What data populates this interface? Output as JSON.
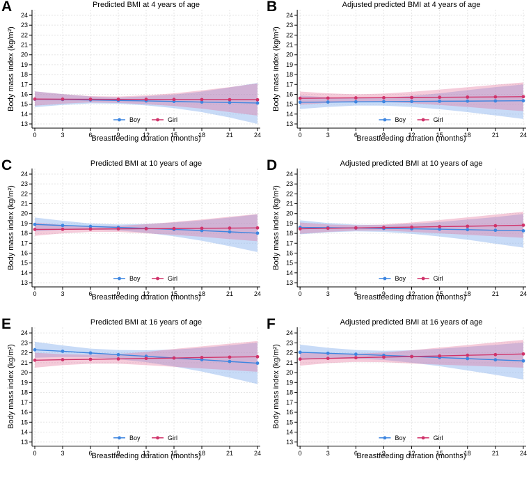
{
  "figure": {
    "background": "#ffffff",
    "legend_labels": [
      "Boy",
      "Girl"
    ],
    "boy_color": "#3e86e0",
    "girl_color": "#d0336a"
  },
  "chart_data": [
    {
      "type": "line",
      "panel_label": "A",
      "title": "Predicted BMI at 4 years of age",
      "xlabel": "Breastfeeding duration (months)",
      "ylabel": "Body mass index (kg/m²)",
      "x": [
        0,
        3,
        6,
        9,
        12,
        15,
        18,
        21,
        24
      ],
      "xticks": [
        0,
        3,
        6,
        9,
        12,
        15,
        18,
        21,
        24
      ],
      "yticks": [
        13,
        14,
        15,
        16,
        17,
        18,
        19,
        20,
        21,
        22,
        23,
        24
      ],
      "xlim": [
        0,
        24
      ],
      "ylim": [
        13,
        24
      ],
      "grid": true,
      "legend_position": "bottom-center-inside",
      "series": [
        {
          "name": "Boy",
          "color": "#3e86e0",
          "band_color": "rgba(125,170,235,0.42)",
          "values": [
            15.5,
            15.47,
            15.43,
            15.38,
            15.33,
            15.28,
            15.22,
            15.17,
            15.12
          ],
          "ci_lower": [
            14.7,
            14.92,
            15.08,
            15.05,
            14.88,
            14.6,
            14.2,
            13.65,
            13.0
          ],
          "ci_upper": [
            16.3,
            16.02,
            15.78,
            15.68,
            15.8,
            15.98,
            16.28,
            16.7,
            17.15
          ]
        },
        {
          "name": "Girl",
          "color": "#d0336a",
          "band_color": "rgba(225,105,150,0.35)",
          "values": [
            15.52,
            15.51,
            15.5,
            15.49,
            15.49,
            15.48,
            15.47,
            15.46,
            15.45
          ],
          "ci_lower": [
            14.85,
            15.05,
            15.18,
            15.12,
            15.0,
            14.82,
            14.55,
            14.2,
            13.85
          ],
          "ci_upper": [
            16.3,
            16.02,
            15.82,
            15.78,
            15.9,
            16.1,
            16.4,
            16.73,
            17.1
          ]
        }
      ]
    },
    {
      "type": "line",
      "panel_label": "B",
      "title": "Adjusted predicted BMI at 4 years of age",
      "xlabel": "Breastfeeding duration (months)",
      "ylabel": "Body mass index (kg/m²)",
      "x": [
        0,
        3,
        6,
        9,
        12,
        15,
        18,
        21,
        24
      ],
      "xticks": [
        0,
        3,
        6,
        9,
        12,
        15,
        18,
        21,
        24
      ],
      "yticks": [
        13,
        14,
        15,
        16,
        17,
        18,
        19,
        20,
        21,
        22,
        23,
        24
      ],
      "xlim": [
        0,
        24
      ],
      "ylim": [
        13,
        24
      ],
      "grid": true,
      "legend_position": "bottom-center-inside",
      "series": [
        {
          "name": "Boy",
          "color": "#3e86e0",
          "band_color": "rgba(125,170,235,0.42)",
          "values": [
            15.2,
            15.22,
            15.24,
            15.26,
            15.28,
            15.3,
            15.31,
            15.33,
            15.35
          ],
          "ci_lower": [
            14.52,
            14.72,
            14.86,
            14.85,
            14.72,
            14.5,
            14.2,
            13.86,
            13.5
          ],
          "ci_upper": [
            15.88,
            15.7,
            15.6,
            15.66,
            15.85,
            16.1,
            16.42,
            16.73,
            17.0
          ]
        },
        {
          "name": "Girl",
          "color": "#d0336a",
          "band_color": "rgba(225,105,150,0.35)",
          "values": [
            15.6,
            15.62,
            15.64,
            15.66,
            15.68,
            15.7,
            15.72,
            15.74,
            15.76
          ],
          "ci_lower": [
            14.95,
            15.12,
            15.25,
            15.22,
            15.1,
            14.92,
            14.72,
            14.5,
            14.3
          ],
          "ci_upper": [
            16.28,
            16.1,
            16.0,
            16.08,
            16.25,
            16.48,
            16.72,
            16.97,
            17.2
          ]
        }
      ]
    },
    {
      "type": "line",
      "panel_label": "C",
      "title": "Predicted BMI at 10 years of age",
      "xlabel": "Breastfeeding duration (months)",
      "ylabel": "Body mass index (kg/m²)",
      "x": [
        0,
        3,
        6,
        9,
        12,
        15,
        18,
        21,
        24
      ],
      "xticks": [
        0,
        3,
        6,
        9,
        12,
        15,
        18,
        21,
        24
      ],
      "yticks": [
        13,
        14,
        15,
        16,
        17,
        18,
        19,
        20,
        21,
        22,
        23,
        24
      ],
      "xlim": [
        0,
        24
      ],
      "ylim": [
        13,
        24
      ],
      "grid": true,
      "legend_position": "bottom-center-inside",
      "series": [
        {
          "name": "Boy",
          "color": "#3e86e0",
          "band_color": "rgba(125,170,235,0.42)",
          "values": [
            18.9,
            18.8,
            18.7,
            18.6,
            18.5,
            18.4,
            18.28,
            18.15,
            18.02
          ],
          "ci_lower": [
            18.2,
            18.35,
            18.4,
            18.3,
            18.05,
            17.7,
            17.25,
            16.7,
            16.1
          ],
          "ci_upper": [
            19.6,
            19.28,
            19.0,
            18.9,
            18.95,
            19.1,
            19.32,
            19.6,
            19.92
          ]
        },
        {
          "name": "Girl",
          "color": "#d0336a",
          "band_color": "rgba(225,105,150,0.35)",
          "values": [
            18.4,
            18.41,
            18.43,
            18.45,
            18.47,
            18.49,
            18.51,
            18.53,
            18.55
          ],
          "ci_lower": [
            17.75,
            18.0,
            18.15,
            18.15,
            18.0,
            17.85,
            17.65,
            17.42,
            17.2
          ],
          "ci_upper": [
            19.08,
            18.85,
            18.72,
            18.76,
            18.92,
            19.15,
            19.4,
            19.68,
            19.95
          ]
        }
      ]
    },
    {
      "type": "line",
      "panel_label": "D",
      "title": "Adjusted predicted BMI at 10 years of age",
      "xlabel": "Breastfeeding duration (months)",
      "ylabel": "Body mass index (kg/m²)",
      "x": [
        0,
        3,
        6,
        9,
        12,
        15,
        18,
        21,
        24
      ],
      "xticks": [
        0,
        3,
        6,
        9,
        12,
        15,
        18,
        21,
        24
      ],
      "yticks": [
        13,
        14,
        15,
        16,
        17,
        18,
        19,
        20,
        21,
        22,
        23,
        24
      ],
      "xlim": [
        0,
        24
      ],
      "ylim": [
        13,
        24
      ],
      "grid": true,
      "legend_position": "bottom-center-inside",
      "series": [
        {
          "name": "Boy",
          "color": "#3e86e0",
          "band_color": "rgba(125,170,235,0.42)",
          "values": [
            18.6,
            18.57,
            18.54,
            18.5,
            18.46,
            18.42,
            18.37,
            18.31,
            18.26
          ],
          "ci_lower": [
            17.9,
            18.1,
            18.2,
            18.15,
            17.95,
            17.68,
            17.35,
            16.95,
            16.55
          ],
          "ci_upper": [
            19.32,
            19.05,
            18.88,
            18.85,
            18.96,
            19.15,
            19.4,
            19.65,
            19.95
          ]
        },
        {
          "name": "Girl",
          "color": "#d0336a",
          "band_color": "rgba(225,105,150,0.35)",
          "values": [
            18.46,
            18.51,
            18.55,
            18.59,
            18.63,
            18.68,
            18.72,
            18.77,
            18.82
          ],
          "ci_lower": [
            17.95,
            18.15,
            18.28,
            18.28,
            18.15,
            18.0,
            17.85,
            17.7,
            17.55
          ],
          "ci_upper": [
            19.1,
            18.9,
            18.82,
            18.9,
            19.1,
            19.35,
            19.62,
            19.9,
            20.18
          ]
        }
      ]
    },
    {
      "type": "line",
      "panel_label": "E",
      "title": "Predicted BMI at 16 years of age",
      "xlabel": "Breastfeeding duration (months)",
      "ylabel": "Body mass index (kg/m²)",
      "x": [
        0,
        3,
        6,
        9,
        12,
        15,
        18,
        21,
        24
      ],
      "xticks": [
        0,
        3,
        6,
        9,
        12,
        15,
        18,
        21,
        24
      ],
      "yticks": [
        13,
        14,
        15,
        16,
        17,
        18,
        19,
        20,
        21,
        22,
        23,
        24
      ],
      "xlim": [
        0,
        24
      ],
      "ylim": [
        13,
        24
      ],
      "grid": true,
      "legend_position": "bottom-center-inside",
      "series": [
        {
          "name": "Boy",
          "color": "#3e86e0",
          "band_color": "rgba(125,170,235,0.42)",
          "values": [
            22.3,
            22.15,
            21.98,
            21.81,
            21.64,
            21.47,
            21.3,
            21.12,
            20.95
          ],
          "ci_lower": [
            21.5,
            21.58,
            21.55,
            21.35,
            21.05,
            20.62,
            20.1,
            19.5,
            18.85
          ],
          "ci_upper": [
            23.1,
            22.74,
            22.42,
            22.28,
            22.25,
            22.32,
            22.5,
            22.75,
            23.02
          ]
        },
        {
          "name": "Girl",
          "color": "#d0336a",
          "band_color": "rgba(225,105,150,0.35)",
          "values": [
            21.25,
            21.3,
            21.34,
            21.38,
            21.43,
            21.47,
            21.52,
            21.56,
            21.6
          ],
          "ci_lower": [
            20.5,
            20.75,
            20.9,
            20.9,
            20.75,
            20.58,
            20.42,
            20.25,
            20.08
          ],
          "ci_upper": [
            22.0,
            21.86,
            21.8,
            21.88,
            22.08,
            22.38,
            22.65,
            22.92,
            23.18
          ]
        }
      ]
    },
    {
      "type": "line",
      "panel_label": "F",
      "title": "Adjusted predicted BMI at 16 years of age",
      "xlabel": "Breastfeeding duration (months)",
      "ylabel": "Body mass index (kg/m²)",
      "x": [
        0,
        3,
        6,
        9,
        12,
        15,
        18,
        21,
        24
      ],
      "xticks": [
        0,
        3,
        6,
        9,
        12,
        15,
        18,
        21,
        24
      ],
      "yticks": [
        13,
        14,
        15,
        16,
        17,
        18,
        19,
        20,
        21,
        22,
        23,
        24
      ],
      "xlim": [
        0,
        24
      ],
      "ylim": [
        13,
        24
      ],
      "grid": true,
      "legend_position": "bottom-center-inside",
      "series": [
        {
          "name": "Boy",
          "color": "#3e86e0",
          "band_color": "rgba(125,170,235,0.42)",
          "values": [
            22.05,
            21.95,
            21.85,
            21.74,
            21.63,
            21.52,
            21.41,
            21.29,
            21.18
          ],
          "ci_lower": [
            21.28,
            21.42,
            21.42,
            21.28,
            21.0,
            20.65,
            20.22,
            19.78,
            19.3
          ],
          "ci_upper": [
            22.82,
            22.5,
            22.28,
            22.2,
            22.25,
            22.4,
            22.6,
            22.8,
            23.02
          ]
        },
        {
          "name": "Girl",
          "color": "#d0336a",
          "band_color": "rgba(225,105,150,0.35)",
          "values": [
            21.36,
            21.43,
            21.5,
            21.56,
            21.62,
            21.68,
            21.75,
            21.81,
            21.88
          ],
          "ci_lower": [
            20.7,
            20.95,
            21.08,
            21.05,
            20.92,
            20.8,
            20.7,
            20.6,
            20.5
          ],
          "ci_upper": [
            22.05,
            21.92,
            21.9,
            22.02,
            22.25,
            22.52,
            22.78,
            23.05,
            23.3
          ]
        }
      ]
    }
  ]
}
